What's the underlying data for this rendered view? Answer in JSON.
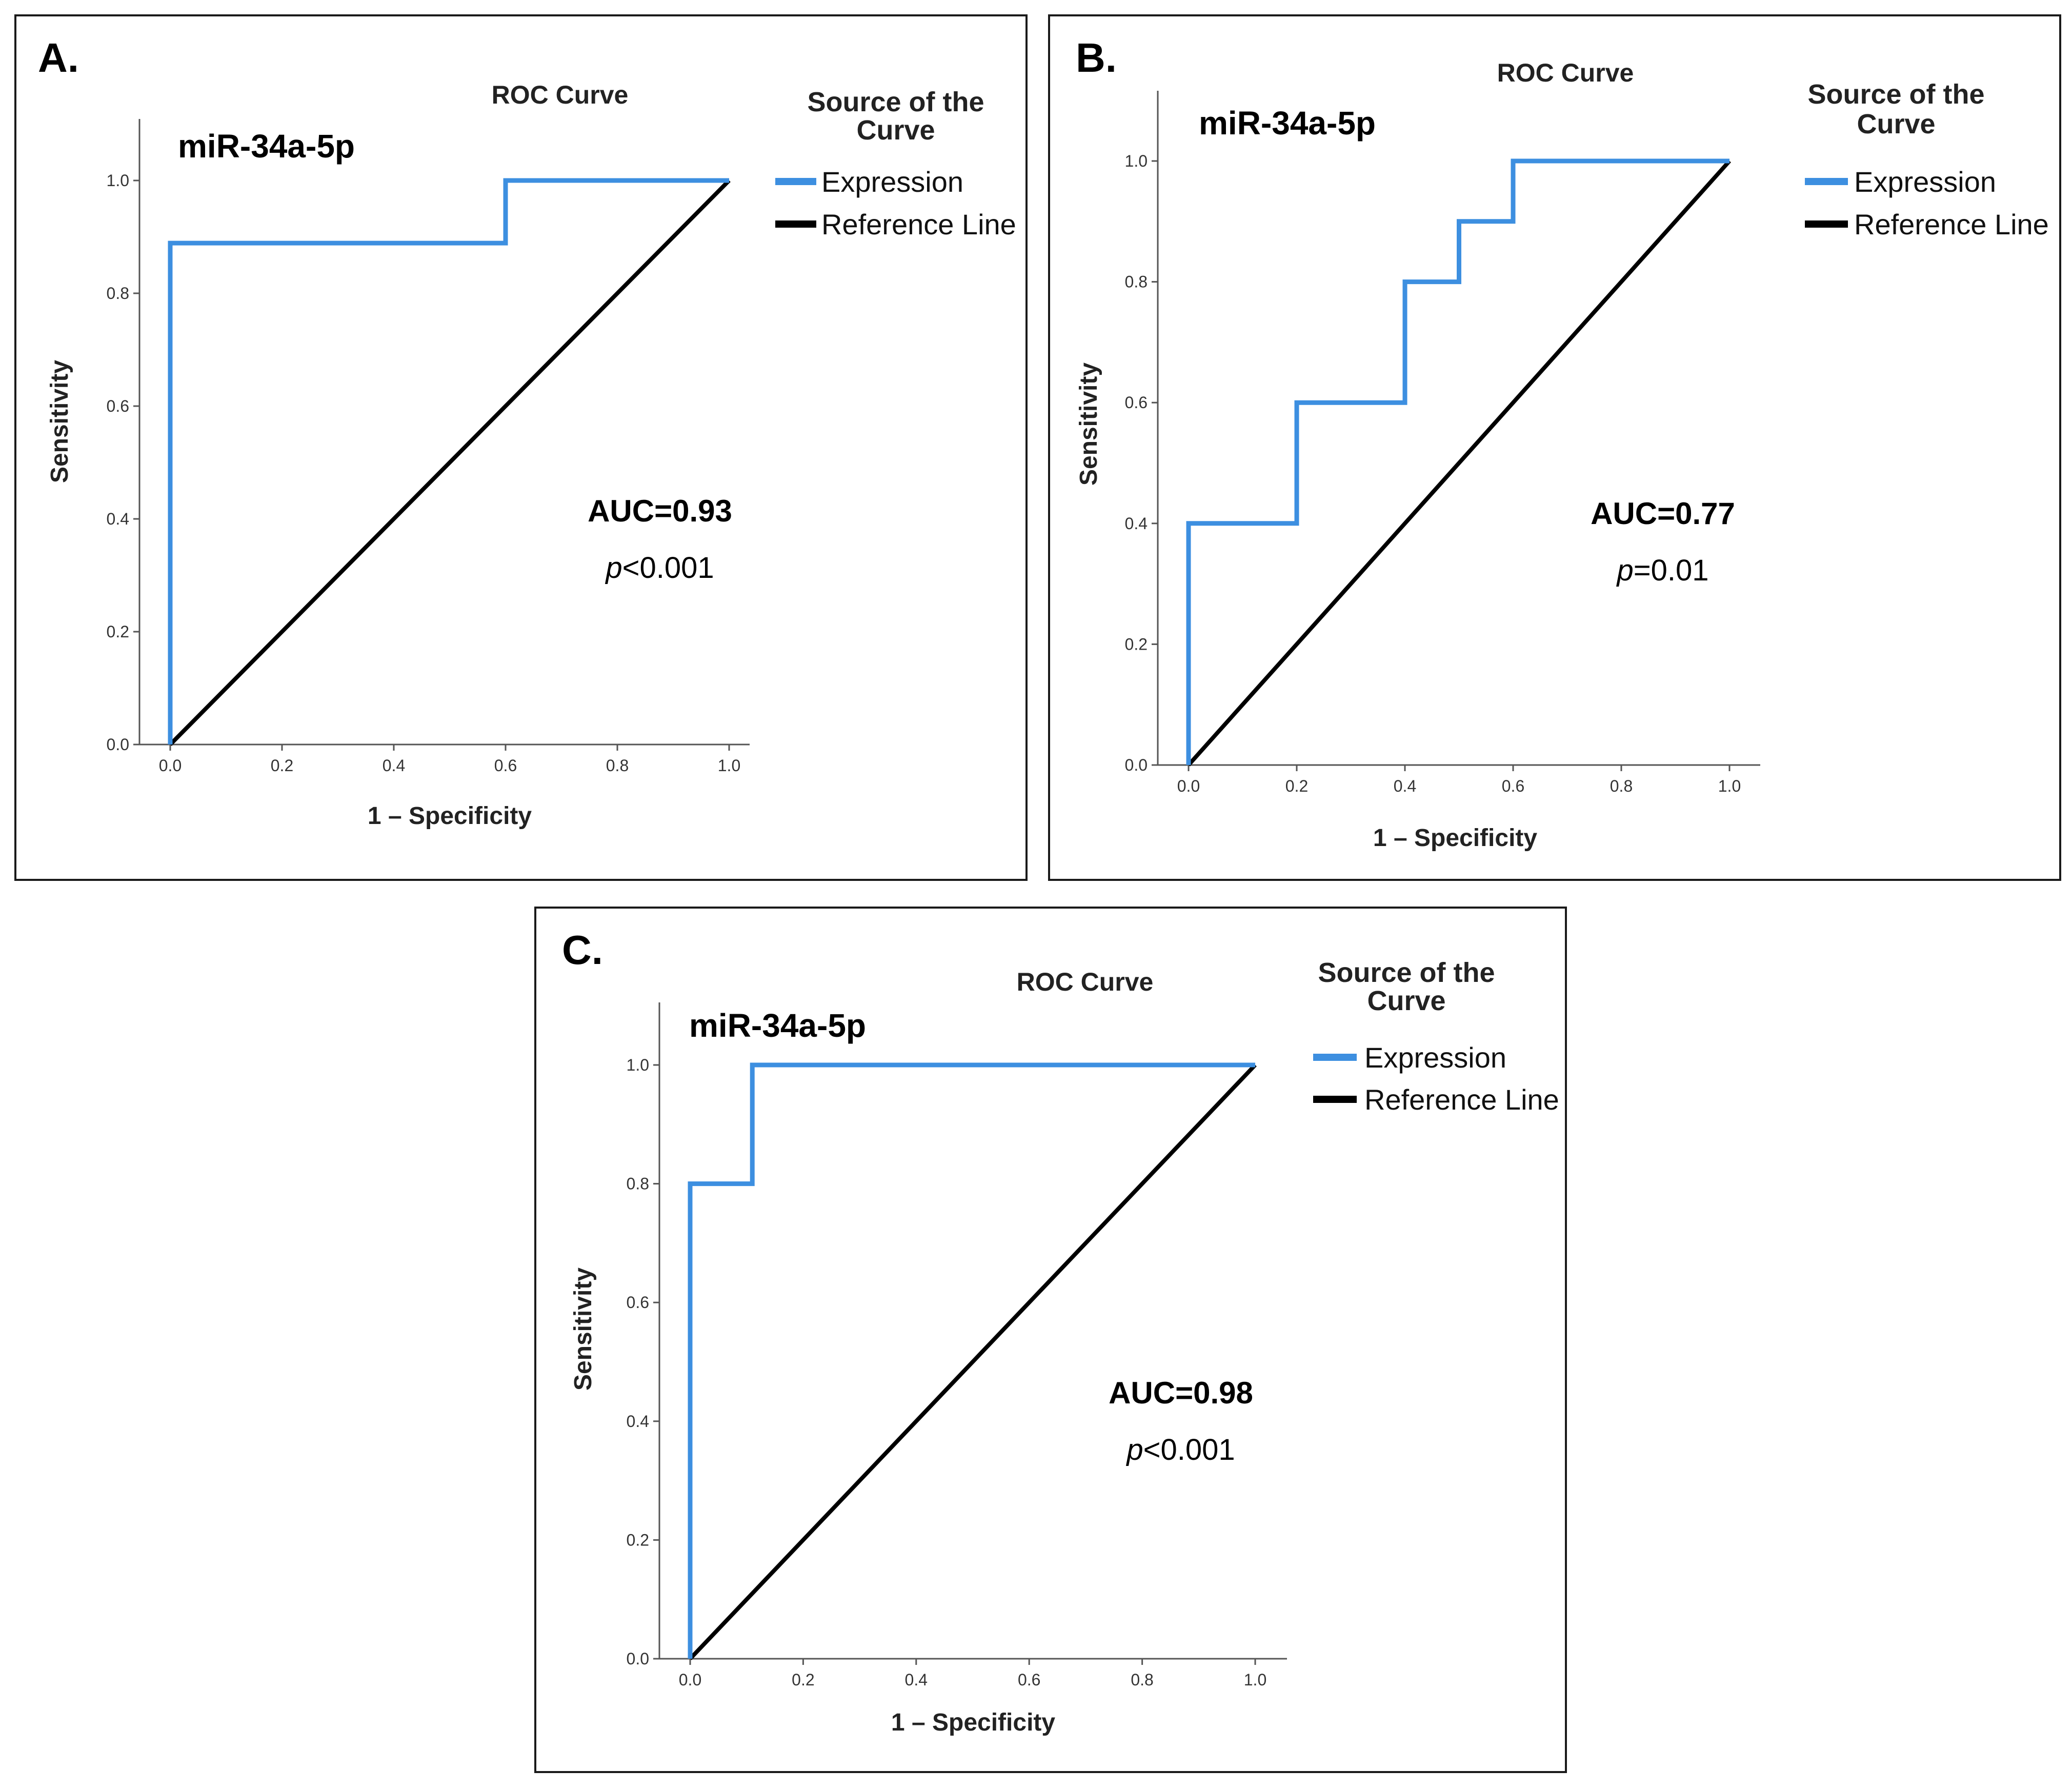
{
  "colors": {
    "expression": "#3d8fe0",
    "reference": "#000000",
    "axis": "#555555",
    "frame": "#1a1a1a"
  },
  "chart_data": [
    {
      "type": "line",
      "panel_label": "A.",
      "title": "ROC Curve",
      "series_label": "miR-34a-5p",
      "xlabel": "1 – Specificity",
      "ylabel": "Sensitivity",
      "xlim": [
        0,
        1.0
      ],
      "ylim": [
        0,
        1.1
      ],
      "x_ticks": [
        "0.0",
        "0.2",
        "0.4",
        "0.6",
        "0.8",
        "1.0"
      ],
      "y_ticks": [
        "0.0",
        "0.2",
        "0.4",
        "0.6",
        "0.8",
        "1.0"
      ],
      "legend": {
        "title_line1": "Source of the",
        "title_line2": "Curve",
        "position": "right"
      },
      "series": [
        {
          "name": "Expression",
          "x": [
            0.0,
            0.0,
            0.6,
            0.6,
            1.0
          ],
          "y": [
            0.0,
            0.889,
            0.889,
            1.0,
            1.0
          ]
        },
        {
          "name": "Reference Line",
          "x": [
            0.0,
            1.0
          ],
          "y": [
            0.0,
            1.0
          ]
        }
      ],
      "annotations": {
        "auc": "AUC=0.93",
        "p_prefix": "p",
        "p_rest": "<0.001"
      }
    },
    {
      "type": "line",
      "panel_label": "B.",
      "title": "ROC Curve",
      "series_label": "miR-34a-5p",
      "xlabel": "1 – Specificity",
      "ylabel": "Sensitivity",
      "xlim": [
        0,
        1.0
      ],
      "ylim": [
        0,
        1.1
      ],
      "x_ticks": [
        "0.0",
        "0.2",
        "0.4",
        "0.6",
        "0.8",
        "1.0"
      ],
      "y_ticks": [
        "0.0",
        "0.2",
        "0.4",
        "0.6",
        "0.8",
        "1.0"
      ],
      "legend": {
        "title_line1": "Source of the",
        "title_line2": "Curve",
        "position": "right"
      },
      "series": [
        {
          "name": "Expression",
          "x": [
            0.0,
            0.0,
            0.2,
            0.2,
            0.4,
            0.4,
            0.5,
            0.5,
            0.6,
            0.6,
            1.0
          ],
          "y": [
            0.0,
            0.4,
            0.4,
            0.6,
            0.6,
            0.8,
            0.8,
            0.9,
            0.9,
            1.0,
            1.0
          ]
        },
        {
          "name": "Reference Line",
          "x": [
            0.0,
            1.0
          ],
          "y": [
            0.0,
            1.0
          ]
        }
      ],
      "annotations": {
        "auc": "AUC=0.77",
        "p_prefix": "p",
        "p_rest": "=0.01"
      }
    },
    {
      "type": "line",
      "panel_label": "C.",
      "title": "ROC Curve",
      "series_label": "miR-34a-5p",
      "xlabel": "1 – Specificity",
      "ylabel": "Sensitivity",
      "xlim": [
        0,
        1.0
      ],
      "ylim": [
        0,
        1.1
      ],
      "x_ticks": [
        "0.0",
        "0.2",
        "0.4",
        "0.6",
        "0.8",
        "1.0"
      ],
      "y_ticks": [
        "0.0",
        "0.2",
        "0.4",
        "0.6",
        "0.8",
        "1.0"
      ],
      "legend": {
        "title_line1": "Source of the",
        "title_line2": "Curve",
        "position": "right"
      },
      "series": [
        {
          "name": "Expression",
          "x": [
            0.0,
            0.0,
            0.11,
            0.11,
            1.0
          ],
          "y": [
            0.0,
            0.8,
            0.8,
            1.0,
            1.0
          ]
        },
        {
          "name": "Reference Line",
          "x": [
            0.0,
            1.0
          ],
          "y": [
            0.0,
            1.0
          ]
        }
      ],
      "annotations": {
        "auc": "AUC=0.98",
        "p_prefix": "p",
        "p_rest": "<0.001"
      }
    }
  ]
}
